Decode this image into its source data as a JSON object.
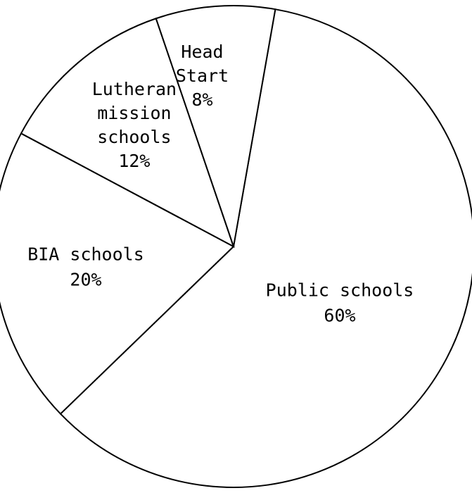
{
  "chart_data": {
    "type": "pie",
    "title": "",
    "start_angle_deg": 80,
    "direction": "clockwise",
    "slices": [
      {
        "label_lines": [
          "Public schools",
          "60%"
        ],
        "value": 60
      },
      {
        "label_lines": [
          "BIA schools",
          "20%"
        ],
        "value": 20
      },
      {
        "label_lines": [
          "Lutheran",
          "mission",
          "schools",
          "12%"
        ],
        "value": 12
      },
      {
        "label_lines": [
          "Head",
          "Start",
          "8%"
        ],
        "value": 8
      }
    ]
  }
}
